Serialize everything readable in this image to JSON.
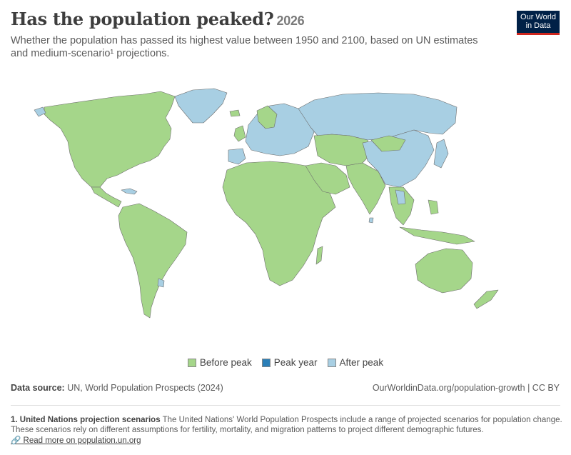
{
  "title": "Has the population peaked?",
  "year": "2026",
  "subtitle": "Whether the population has passed its highest value between 1950 and 2100, based on UN estimates and medium-scenario¹ projections.",
  "logo": {
    "line1": "Our World",
    "line2": "in Data"
  },
  "colors": {
    "before_peak": "#a5d68a",
    "peak_year": "#2a7fb8",
    "after_peak": "#a8cfe3",
    "border": "#6d6d6d",
    "logo_bg": "#002147",
    "logo_accent": "#ce261e"
  },
  "legend": [
    {
      "label": "Before peak",
      "color": "#a5d68a"
    },
    {
      "label": "Peak year",
      "color": "#2a7fb8"
    },
    {
      "label": "After peak",
      "color": "#a8cfe3"
    }
  ],
  "source": {
    "label": "Data source:",
    "text": "UN, World Population Prospects (2024)"
  },
  "url": "OurWorldinData.org/population-growth | CC BY",
  "footnote": {
    "title": "1. United Nations projection scenarios",
    "text": "The United Nations' World Population Prospects include a range of projected scenarios for population change. These scenarios rely on different assumptions for fertility, mortality, and migration patterns to project different demographic futures.",
    "link_icon": "link-icon",
    "link": "Read more on population.un.org"
  }
}
